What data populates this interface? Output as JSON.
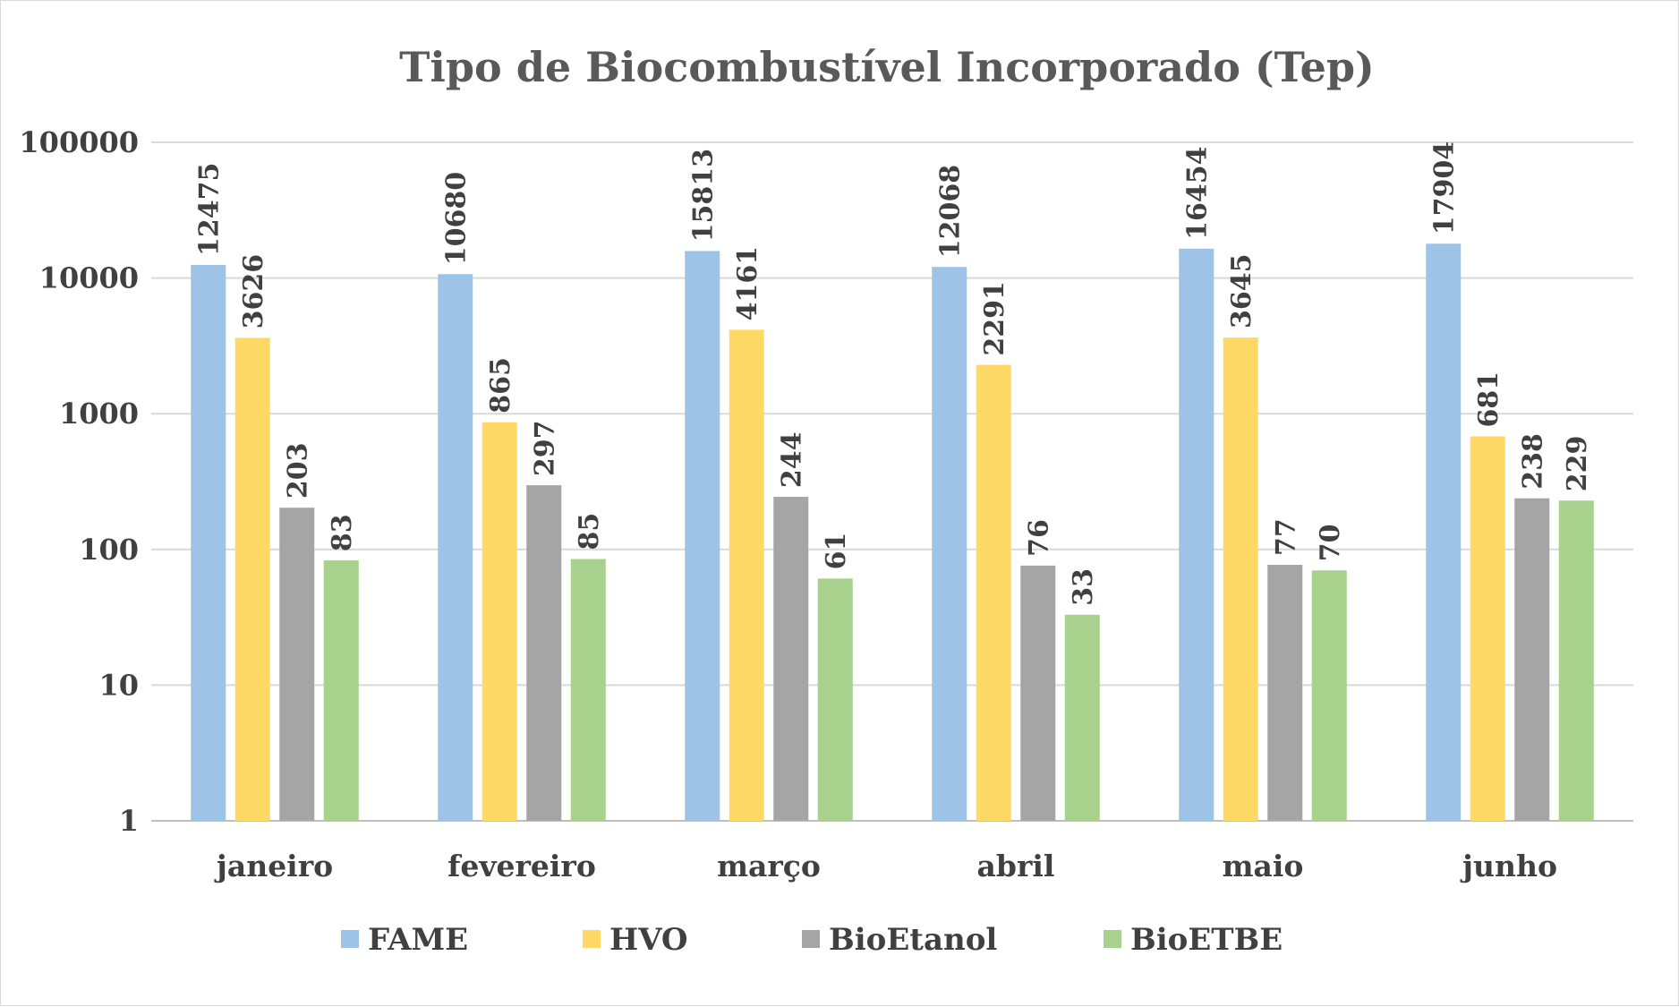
{
  "chart_data": {
    "type": "bar",
    "title": "Tipo de Biocombustível Incorporado (Tep)",
    "xlabel": "",
    "ylabel": "",
    "yscale": "log",
    "ylim": [
      1,
      100000
    ],
    "yticks": [
      "1",
      "10",
      "100",
      "1000",
      "10000",
      "100000"
    ],
    "grid": true,
    "legend_position": "bottom",
    "categories": [
      "janeiro",
      "fevereiro",
      "março",
      "abril",
      "maio",
      "junho"
    ],
    "series": [
      {
        "name": "FAME",
        "color": "#9dc3e6",
        "values": [
          12475,
          10680,
          15813,
          12068,
          16454,
          17904
        ]
      },
      {
        "name": "HVO",
        "color": "#ffd966",
        "values": [
          3626,
          865,
          4161,
          2291,
          3645,
          681
        ]
      },
      {
        "name": "BioEtanol",
        "color": "#a5a5a5",
        "values": [
          203,
          297,
          244,
          76,
          77,
          238
        ]
      },
      {
        "name": "BioETBE",
        "color": "#a9d18e",
        "values": [
          83,
          85,
          61,
          33,
          70,
          229
        ]
      }
    ]
  }
}
